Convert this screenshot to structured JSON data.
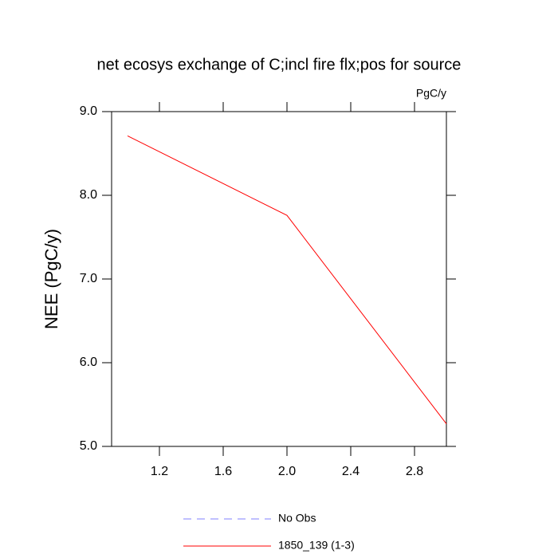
{
  "chart_data": {
    "type": "line",
    "title": "net ecosys exchange of C;incl fire flx;pos for source",
    "units": "PgC/y",
    "y_label": "NEE  (PgC/y)",
    "x": [
      1,
      2,
      3
    ],
    "series": [
      {
        "name": "No Obs",
        "color": "#8080ff",
        "dash": true,
        "values": [
          null,
          null,
          null
        ]
      },
      {
        "name": "1850_139 (1-3)",
        "color": "#ff0000",
        "dash": false,
        "values": [
          8.71,
          7.76,
          5.27
        ]
      }
    ],
    "xlim": [
      0.9,
      3.0
    ],
    "xticks": [
      1.2,
      1.6,
      {
        "value": 2.0,
        "label": "2.0"
      },
      2.4,
      2.8
    ],
    "ylim": [
      5.0,
      9.0
    ],
    "yticks": [
      {
        "value": 5.0,
        "label": "5.0"
      },
      {
        "value": 6.0,
        "label": "6.0"
      },
      {
        "value": 7.0,
        "label": "7.0"
      },
      {
        "value": 8.0,
        "label": "8.0"
      },
      {
        "value": 9.0,
        "label": "9.0"
      }
    ]
  }
}
